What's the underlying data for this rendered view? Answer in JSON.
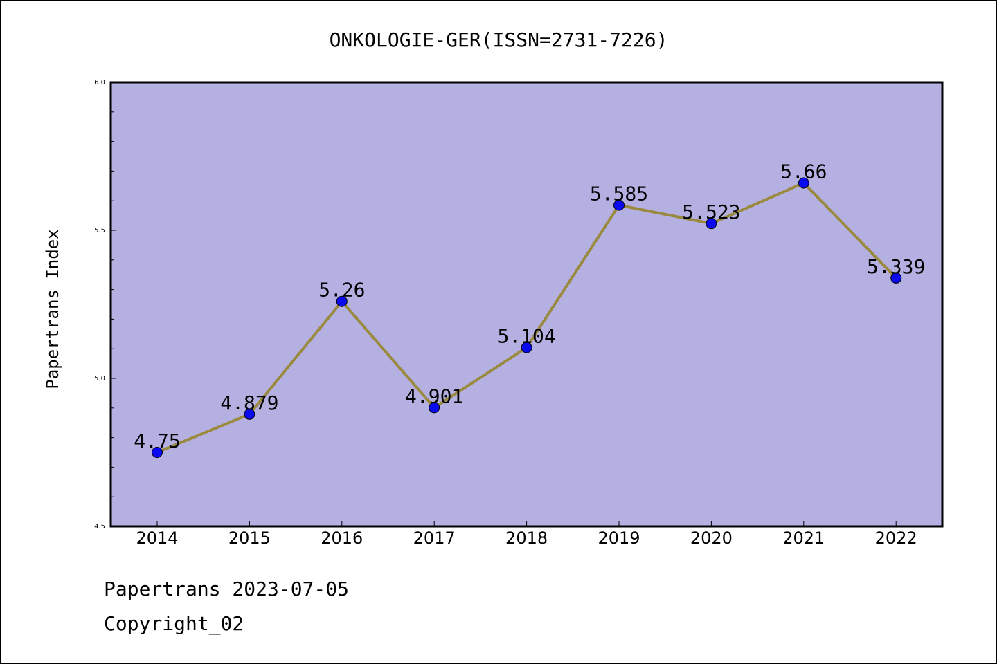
{
  "chart_data": {
    "type": "line",
    "title": "ONKOLOGIE-GER(ISSN=2731-7226)",
    "ylabel": "Papertrans Index",
    "xlabel": "",
    "categories": [
      "2014",
      "2015",
      "2016",
      "2017",
      "2018",
      "2019",
      "2020",
      "2021",
      "2022"
    ],
    "values": [
      4.75,
      4.879,
      5.26,
      4.901,
      5.104,
      5.585,
      5.523,
      5.66,
      5.339
    ],
    "data_labels": [
      "4.75",
      "4.879",
      "5.26",
      "4.901",
      "5.104",
      "5.585",
      "5.523",
      "5.66",
      "5.339"
    ],
    "ylim": [
      4.5,
      6.0
    ],
    "yticks": [
      "4.5",
      "5.0",
      "5.5",
      "6.0"
    ],
    "ytick_values": [
      4.5,
      5.0,
      5.5,
      6.0
    ],
    "y_minor_step": 0.1,
    "grid": false,
    "colors": {
      "plot_background": "#b5b0e2",
      "line": "#9a8a3f",
      "marker": "#0a0af0"
    }
  },
  "footer": {
    "date_line": "Papertrans 2023-07-05",
    "copyright": "Copyright_02"
  }
}
